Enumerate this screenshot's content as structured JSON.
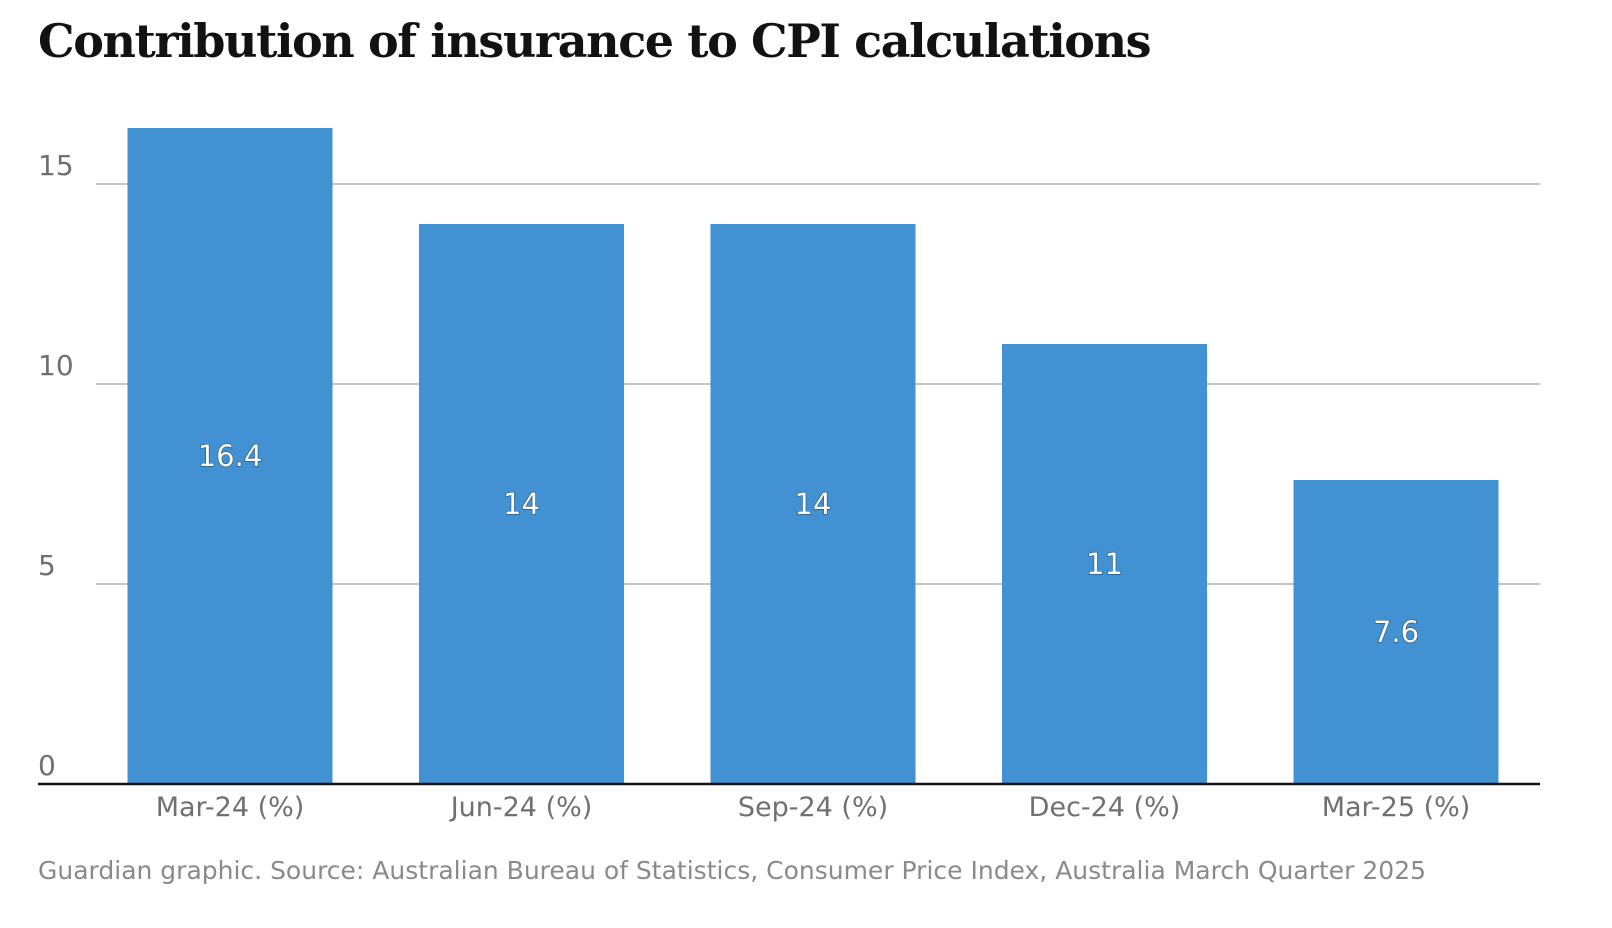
{
  "chart_data": {
    "type": "bar",
    "title": "Contribution of insurance to CPI calculations",
    "categories": [
      "Mar-24 (%)",
      "Jun-24 (%)",
      "Sep-24 (%)",
      "Dec-24 (%)",
      "Mar-25 (%)"
    ],
    "values": [
      16.4,
      14,
      14,
      11,
      7.6
    ],
    "data_labels": [
      "16.4",
      "14",
      "14",
      "11",
      "7.6"
    ],
    "ylim": [
      0,
      16.4
    ],
    "yticks": [
      0,
      5,
      10,
      15
    ],
    "grid": true,
    "legend": "none",
    "bar_color": "#4191d3",
    "source": "Guardian graphic. Source: Australian Bureau of Statistics, Consumer Price Index, Australia March Quarter 2025"
  }
}
